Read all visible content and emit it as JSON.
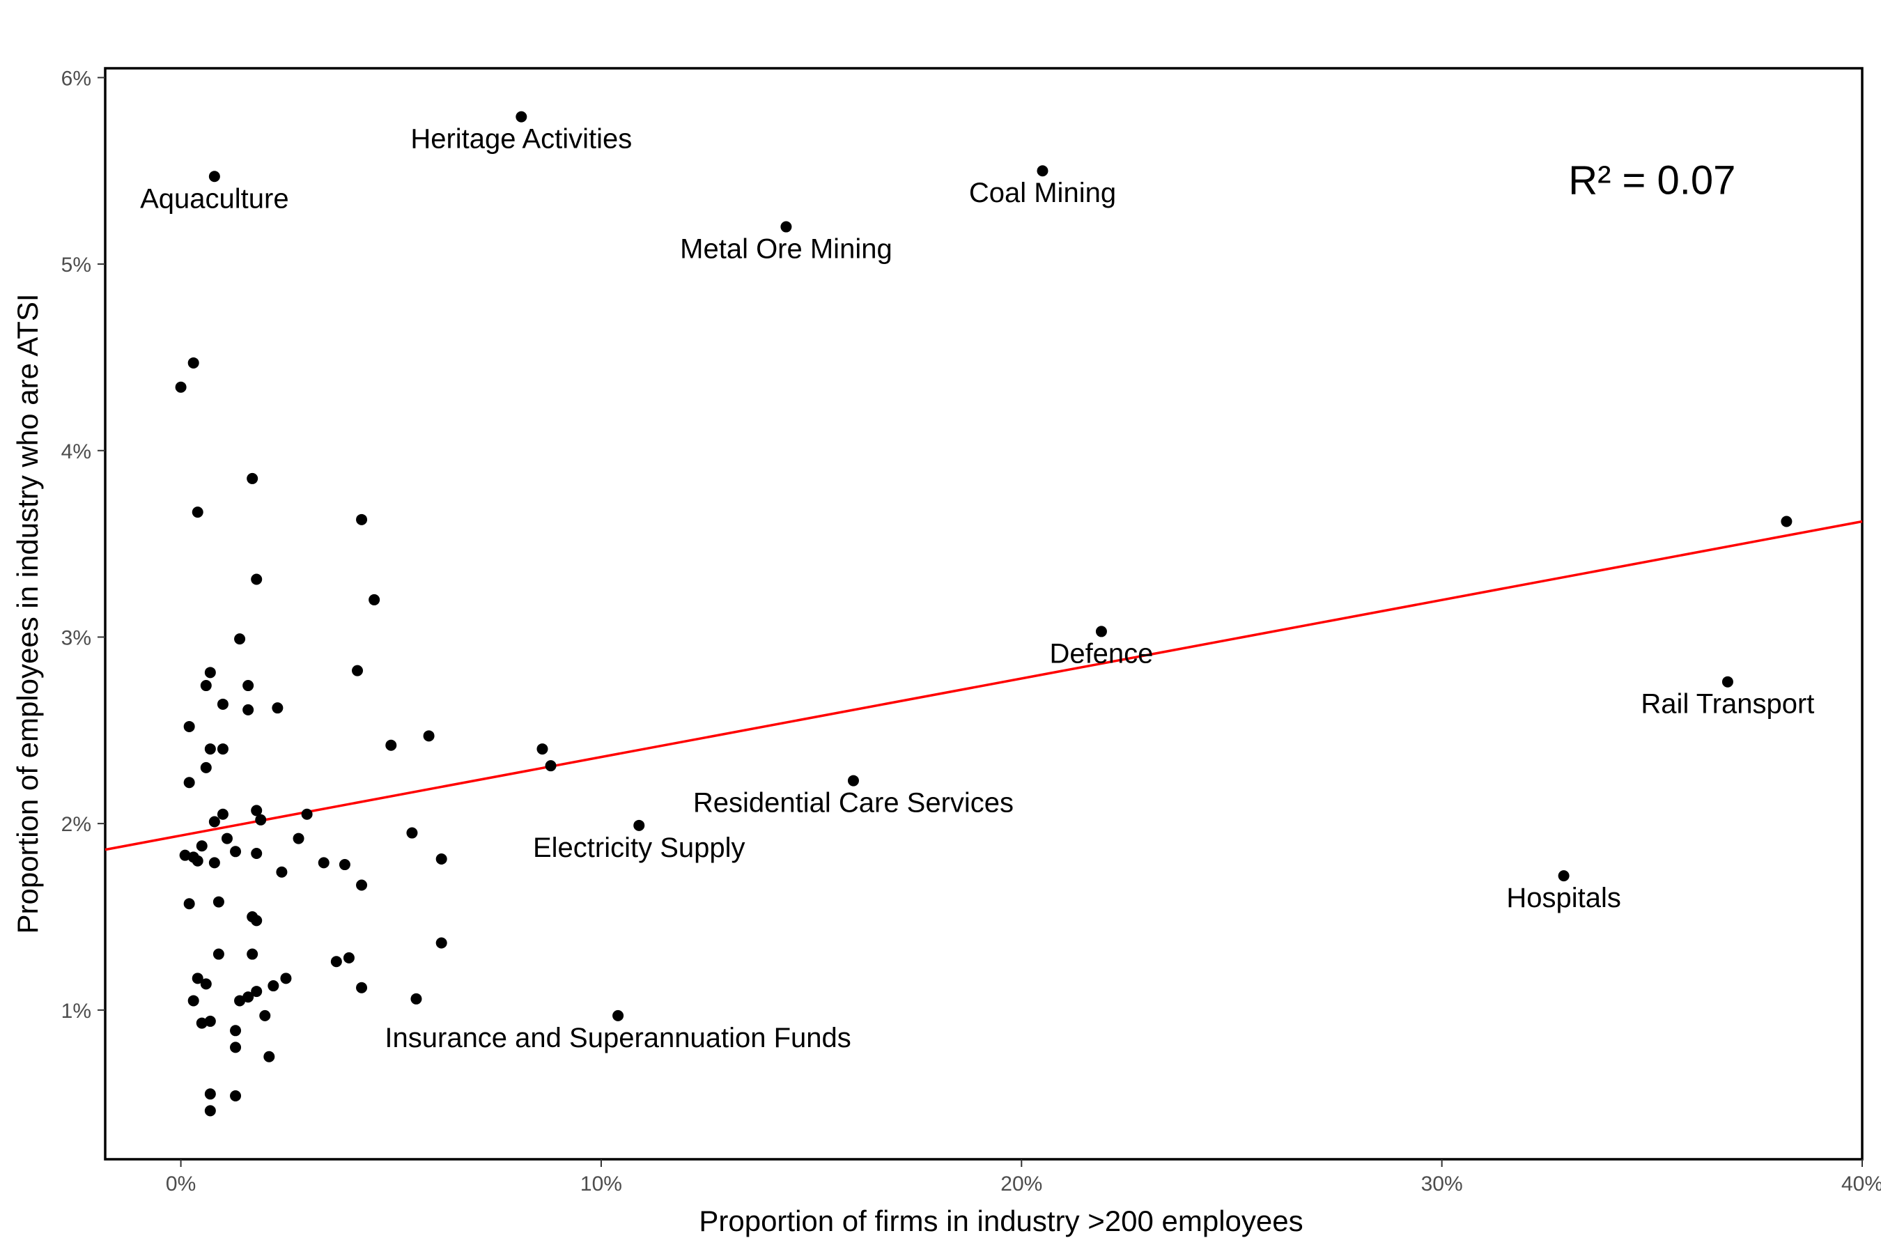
{
  "chart_data": {
    "type": "scatter",
    "title": "",
    "xlabel": "Proportion of firms in industry >200 employees",
    "ylabel": "Proportion of employees in industry who are ATSI",
    "xlim": [
      -1.8,
      40
    ],
    "ylim": [
      0.2,
      6.05
    ],
    "x_ticks": [
      0,
      10,
      20,
      30,
      40
    ],
    "x_tick_labels": [
      "0%",
      "10%",
      "20%",
      "30%",
      "40%"
    ],
    "y_ticks": [
      1,
      2,
      3,
      4,
      5,
      6
    ],
    "y_tick_labels": [
      "1%",
      "2%",
      "3%",
      "4%",
      "5%",
      "6%"
    ],
    "grid": false,
    "annotation": {
      "text": "R² =  0.07",
      "x": 35,
      "y": 5.45
    },
    "trend_line": {
      "color": "#ff0000",
      "x": [
        -1.8,
        40
      ],
      "y": [
        1.86,
        3.62
      ]
    },
    "labeled_points": [
      {
        "label": "Heritage Activities",
        "x": 8.1,
        "y": 5.79
      },
      {
        "label": "Aquaculture",
        "x": 0.8,
        "y": 5.47
      },
      {
        "label": "Coal Mining",
        "x": 20.5,
        "y": 5.5
      },
      {
        "label": "Metal Ore Mining",
        "x": 14.4,
        "y": 5.2
      },
      {
        "label": "Defence",
        "x": 21.9,
        "y": 3.03
      },
      {
        "label": "Rail Transport",
        "x": 36.8,
        "y": 2.76
      },
      {
        "label": "Residential Care Services",
        "x": 16.0,
        "y": 2.23
      },
      {
        "label": "Electricity Supply",
        "x": 10.9,
        "y": 1.99
      },
      {
        "label": "Hospitals",
        "x": 32.9,
        "y": 1.72
      },
      {
        "label": "Insurance and Superannuation Funds",
        "x": 10.4,
        "y": 0.97
      }
    ],
    "points": [
      {
        "x": 38.2,
        "y": 3.62
      },
      {
        "x": 0.0,
        "y": 4.34
      },
      {
        "x": 0.3,
        "y": 4.47
      },
      {
        "x": 0.4,
        "y": 3.67
      },
      {
        "x": 1.7,
        "y": 3.85
      },
      {
        "x": 1.8,
        "y": 3.31
      },
      {
        "x": 1.4,
        "y": 2.99
      },
      {
        "x": 0.7,
        "y": 2.81
      },
      {
        "x": 0.6,
        "y": 2.74
      },
      {
        "x": 1.6,
        "y": 2.74
      },
      {
        "x": 1.0,
        "y": 2.64
      },
      {
        "x": 1.6,
        "y": 2.61
      },
      {
        "x": 2.3,
        "y": 2.62
      },
      {
        "x": 0.2,
        "y": 2.52
      },
      {
        "x": 0.7,
        "y": 2.4
      },
      {
        "x": 1.0,
        "y": 2.4
      },
      {
        "x": 0.6,
        "y": 2.3
      },
      {
        "x": 0.2,
        "y": 2.22
      },
      {
        "x": 1.8,
        "y": 2.07
      },
      {
        "x": 1.0,
        "y": 2.05
      },
      {
        "x": 0.8,
        "y": 2.01
      },
      {
        "x": 1.9,
        "y": 2.02
      },
      {
        "x": 3.0,
        "y": 2.05
      },
      {
        "x": 1.1,
        "y": 1.92
      },
      {
        "x": 2.8,
        "y": 1.92
      },
      {
        "x": 0.5,
        "y": 1.88
      },
      {
        "x": 1.3,
        "y": 1.85
      },
      {
        "x": 1.8,
        "y": 1.84
      },
      {
        "x": 0.1,
        "y": 1.83
      },
      {
        "x": 0.3,
        "y": 1.82
      },
      {
        "x": 0.4,
        "y": 1.8
      },
      {
        "x": 0.8,
        "y": 1.79
      },
      {
        "x": 3.4,
        "y": 1.79
      },
      {
        "x": 3.9,
        "y": 1.78
      },
      {
        "x": 2.4,
        "y": 1.74
      },
      {
        "x": 4.3,
        "y": 1.67
      },
      {
        "x": 0.9,
        "y": 1.58
      },
      {
        "x": 0.2,
        "y": 1.57
      },
      {
        "x": 1.7,
        "y": 1.5
      },
      {
        "x": 1.8,
        "y": 1.48
      },
      {
        "x": 0.9,
        "y": 1.3
      },
      {
        "x": 1.7,
        "y": 1.3
      },
      {
        "x": 3.7,
        "y": 1.26
      },
      {
        "x": 4.0,
        "y": 1.28
      },
      {
        "x": 0.4,
        "y": 1.17
      },
      {
        "x": 0.6,
        "y": 1.14
      },
      {
        "x": 2.5,
        "y": 1.17
      },
      {
        "x": 2.2,
        "y": 1.13
      },
      {
        "x": 1.8,
        "y": 1.1
      },
      {
        "x": 4.3,
        "y": 1.12
      },
      {
        "x": 1.4,
        "y": 1.05
      },
      {
        "x": 1.6,
        "y": 1.07
      },
      {
        "x": 0.3,
        "y": 1.05
      },
      {
        "x": 2.0,
        "y": 0.97
      },
      {
        "x": 0.5,
        "y": 0.93
      },
      {
        "x": 0.7,
        "y": 0.94
      },
      {
        "x": 1.3,
        "y": 0.89
      },
      {
        "x": 1.3,
        "y": 0.8
      },
      {
        "x": 2.1,
        "y": 0.75
      },
      {
        "x": 0.7,
        "y": 0.55
      },
      {
        "x": 1.3,
        "y": 0.54
      },
      {
        "x": 0.7,
        "y": 0.46
      },
      {
        "x": 4.2,
        "y": 2.82
      },
      {
        "x": 4.6,
        "y": 3.2
      },
      {
        "x": 4.3,
        "y": 3.63
      },
      {
        "x": 5.0,
        "y": 2.42
      },
      {
        "x": 5.9,
        "y": 2.47
      },
      {
        "x": 5.5,
        "y": 1.95
      },
      {
        "x": 6.2,
        "y": 1.81
      },
      {
        "x": 6.2,
        "y": 1.36
      },
      {
        "x": 5.6,
        "y": 1.06
      },
      {
        "x": 8.6,
        "y": 2.4
      },
      {
        "x": 8.8,
        "y": 2.31
      }
    ]
  }
}
